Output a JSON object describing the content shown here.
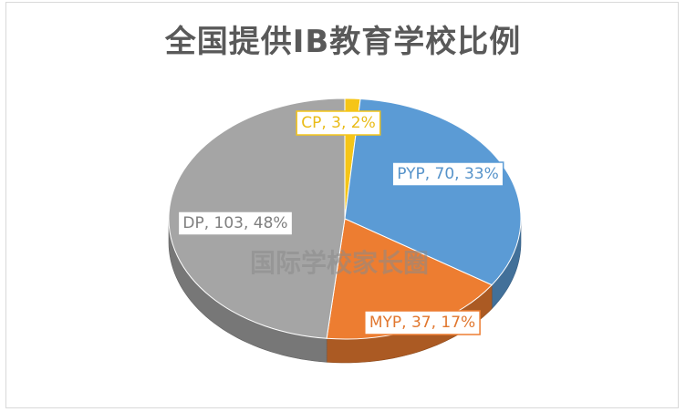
{
  "chart_data": {
    "type": "pie",
    "title": "全国提供IB教育学校比例",
    "slices": [
      {
        "name": "CP",
        "value": 3,
        "percent": 2,
        "label": "CP, 3, 2%",
        "color": "#f5c518"
      },
      {
        "name": "PYP",
        "value": 70,
        "percent": 33,
        "label": "PYP, 70, 33%",
        "color": "#5b9bd5"
      },
      {
        "name": "MYP",
        "value": 37,
        "percent": 17,
        "label": "MYP, 37, 17%",
        "color": "#ed7d31"
      },
      {
        "name": "DP",
        "value": 103,
        "percent": 48,
        "label": "DP, 103, 48%",
        "color": "#a5a5a5"
      }
    ],
    "legend": "none",
    "style": "3d"
  },
  "watermark": "国际学校家长圈"
}
